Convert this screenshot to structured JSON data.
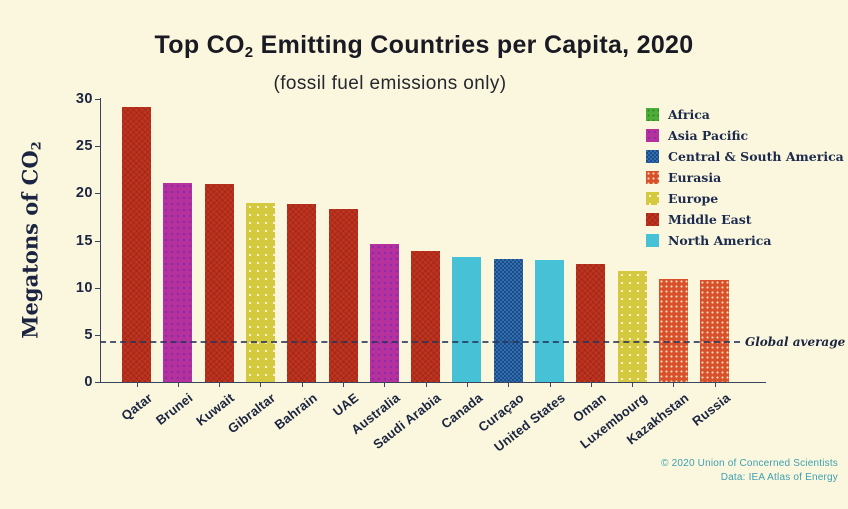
{
  "page": {
    "background": "#fbf7de",
    "text_navy": "#1b2440",
    "footer_teal": "#3f9fb0"
  },
  "header": {
    "title_pre": "Top CO",
    "title_sub": "2",
    "title_post": " Emitting Countries per Capita, 2020",
    "subtitle": "(fossil fuel emissions only)"
  },
  "yaxis": {
    "label_pre": "Megatons of CO",
    "label_sub": "2"
  },
  "chart_data": {
    "type": "bar",
    "title": "Top CO2 Emitting Countries per Capita, 2020",
    "subtitle": "(fossil fuel emissions only)",
    "ylabel": "Megatons of CO2",
    "xlabel": "",
    "ylim": [
      0,
      30
    ],
    "yticks": [
      0,
      5,
      10,
      15,
      20,
      25,
      30
    ],
    "grid": false,
    "categories": [
      "Qatar",
      "Brunei",
      "Kuwait",
      "Gibraltar",
      "Bahrain",
      "UAE",
      "Australia",
      "Saudi Arabia",
      "Canada",
      "Curaçao",
      "United States",
      "Oman",
      "Luxembourg",
      "Kazakhstan",
      "Russia"
    ],
    "values": [
      29.2,
      21.1,
      21.0,
      19.0,
      18.9,
      18.3,
      14.6,
      13.9,
      13.3,
      13.0,
      12.9,
      12.5,
      11.8,
      10.9,
      10.8
    ],
    "regions": [
      "Middle East",
      "Asia Pacific",
      "Middle East",
      "Europe",
      "Middle East",
      "Middle East",
      "Asia Pacific",
      "Middle East",
      "North America",
      "Central & South America",
      "North America",
      "Middle East",
      "Europe",
      "Eurasia",
      "Eurasia"
    ],
    "region_colors": {
      "Africa": "#4cae39",
      "Asia Pacific": "#b5319e",
      "Central & South America": "#2f6fb0",
      "Eurasia": "#d9512b",
      "Europe": "#d5c93f",
      "Middle East": "#c23420",
      "North America": "#47c1d5"
    },
    "legend": [
      {
        "label": "Africa",
        "color": "#4cae39"
      },
      {
        "label": "Asia Pacific",
        "color": "#b5319e"
      },
      {
        "label": "Central & South America",
        "color": "#2f6fb0"
      },
      {
        "label": "Eurasia",
        "color": "#d9512b"
      },
      {
        "label": "Europe",
        "color": "#d5c93f"
      },
      {
        "label": "Middle East",
        "color": "#c23420"
      },
      {
        "label": "North America",
        "color": "#47c1d5"
      }
    ],
    "legend_position": "upper right",
    "global_average": {
      "value": 4.2,
      "label": "Global average"
    }
  },
  "footer": {
    "line1": "© 2020 Union of Concerned Scientists",
    "line2": "Data: IEA Atlas of Energy"
  }
}
